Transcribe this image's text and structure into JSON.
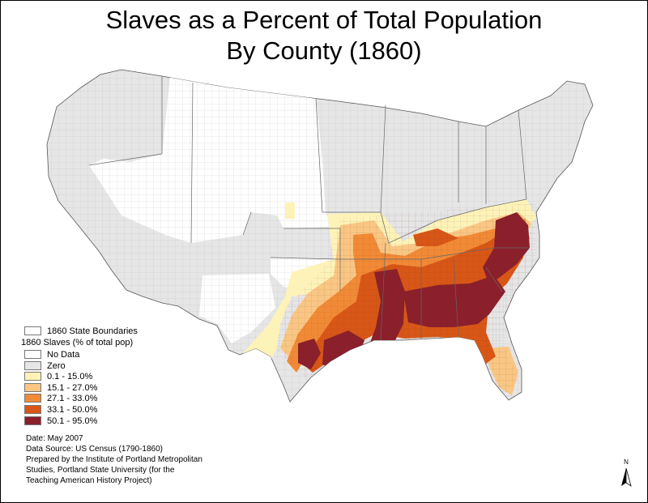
{
  "title": {
    "line1": "Slaves as a Percent of Total Population",
    "line2": "By County (1860)"
  },
  "legend": {
    "boundaries_label": "1860 State Boundaries",
    "heading": "1860 Slaves (% of total pop)",
    "classes": [
      {
        "label": "No Data",
        "color": "#ffffff"
      },
      {
        "label": "Zero",
        "color": "#e6e6e6"
      },
      {
        "label": "0.1 - 15.0%",
        "color": "#fdf3b8"
      },
      {
        "label": "15.1 - 27.0%",
        "color": "#f9c684"
      },
      {
        "label": "27.1 - 33.0%",
        "color": "#f18a36"
      },
      {
        "label": "33.1 - 50.0%",
        "color": "#d85717"
      },
      {
        "label": "50.1 - 95.0%",
        "color": "#8b1f2b"
      }
    ]
  },
  "credits": {
    "date": "Date: May 2007",
    "source": "Data Source:  US Census (1790-1860)",
    "prepared_line1": "Prepared by the Institute of Portland Metropolitan",
    "prepared_line2": "Studies, Portland State University (for the",
    "prepared_line3": "Teaching American History Project)"
  },
  "north_arrow": {
    "letter": "N",
    "icon": "north-arrow-icon"
  }
}
